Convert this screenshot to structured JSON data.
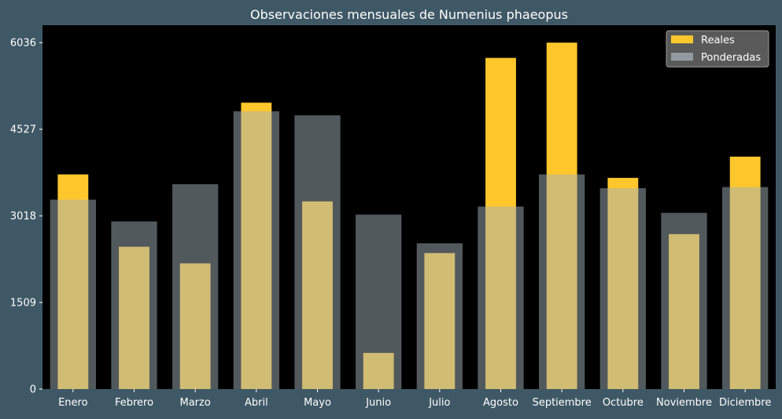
{
  "colors": {
    "figure_background": "#3f5866",
    "plot_background": "#000000",
    "reales": "#ffc72c",
    "ponderadas": "#a4b2b9",
    "legend_background": "#5a5a5a",
    "text": "#ffffff"
  },
  "chart_data": {
    "type": "bar",
    "title": "Observaciones mensuales de Numenius phaeopus",
    "xlabel": "",
    "ylabel": "",
    "categories": [
      "Enero",
      "Febrero",
      "Marzo",
      "Abril",
      "Mayo",
      "Junio",
      "Julio",
      "Agosto",
      "Septiembre",
      "Octubre",
      "Noviembre",
      "Diciembre"
    ],
    "series": [
      {
        "name": "Reales",
        "color": "#ffc72c",
        "values": [
          3740,
          2480,
          2190,
          4990,
          3270,
          630,
          2370,
          5770,
          6036,
          3680,
          2700,
          4050
        ]
      },
      {
        "name": "Ponderadas",
        "color": "#a4b2b9",
        "opacity": 0.5,
        "values": [
          3300,
          2920,
          3570,
          4840,
          4770,
          3040,
          2540,
          3180,
          3740,
          3500,
          3070,
          3520
        ]
      }
    ],
    "yticks": [
      0,
      1509,
      3018,
      4527,
      6036
    ],
    "ylim": [
      0,
      6340
    ],
    "grid": false,
    "legend_position": "top-right",
    "overlay": "ponderadas wider and semi-transparent on top of reales"
  }
}
